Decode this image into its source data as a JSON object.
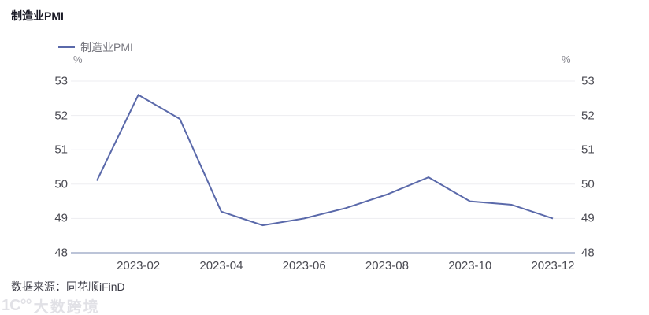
{
  "page": {
    "title": "制造业PMI"
  },
  "legend": {
    "label": "制造业PMI"
  },
  "axes": {
    "y_unit_left": "%",
    "y_unit_right": "%"
  },
  "footer": {
    "source": "数据来源：同花顺iFinD"
  },
  "watermark": {
    "logo": "1C°°",
    "text": "大数跨境"
  },
  "colors": {
    "series": "#5a69aa",
    "axis_line": "#a6b0cb",
    "grid_line": "#ededf1"
  },
  "chart_data": {
    "type": "line",
    "title": "制造业PMI",
    "x": [
      "2023-01",
      "2023-02",
      "2023-03",
      "2023-04",
      "2023-05",
      "2023-06",
      "2023-07",
      "2023-08",
      "2023-09",
      "2023-10",
      "2023-11",
      "2023-12"
    ],
    "series": [
      {
        "name": "制造业PMI",
        "values": [
          50.1,
          52.6,
          51.9,
          49.2,
          48.8,
          49.0,
          49.3,
          49.7,
          50.2,
          49.5,
          49.4,
          49.0
        ]
      }
    ],
    "x_tick_labels": [
      "2023-02",
      "2023-04",
      "2023-06",
      "2023-08",
      "2023-10",
      "2023-12"
    ],
    "x_tick_month_indices": [
      1,
      3,
      5,
      7,
      9,
      11
    ],
    "ylabel": "%",
    "ylim": [
      48,
      53
    ],
    "y_ticks": [
      48,
      49,
      50,
      51,
      52,
      53
    ],
    "grid": "horizontal",
    "legend_position": "top-left",
    "y_axis_sides": "both"
  }
}
